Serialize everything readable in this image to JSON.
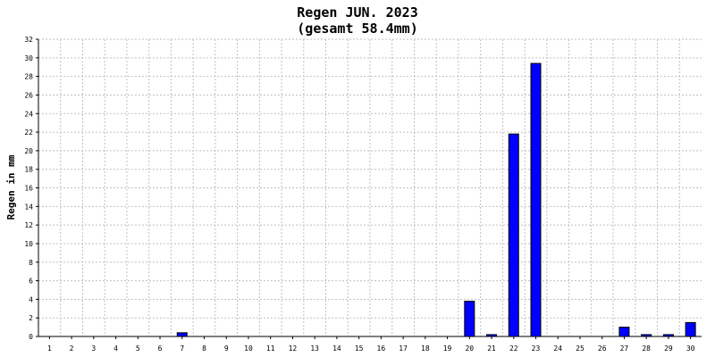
{
  "chart_data": {
    "type": "bar",
    "title": "Regen JUN. 2023",
    "subtitle": "(gesamt 58.4mm)",
    "ylabel": "Regen in mm",
    "xlabel": "",
    "categories": [
      "1",
      "2",
      "3",
      "4",
      "5",
      "6",
      "7",
      "8",
      "9",
      "10",
      "11",
      "12",
      "13",
      "14",
      "15",
      "16",
      "17",
      "18",
      "19",
      "20",
      "21",
      "22",
      "23",
      "24",
      "25",
      "26",
      "27",
      "28",
      "29",
      "30"
    ],
    "values": [
      0,
      0,
      0,
      0,
      0,
      0,
      0.4,
      0,
      0,
      0,
      0,
      0,
      0,
      0,
      0,
      0,
      0,
      0,
      0,
      3.8,
      0.2,
      21.8,
      29.4,
      0,
      0,
      0,
      1.0,
      0.2,
      0.2,
      1.5
    ],
    "ylim": [
      0,
      32
    ],
    "yticks": [
      0,
      2,
      4,
      6,
      8,
      10,
      12,
      14,
      16,
      18,
      20,
      22,
      24,
      26,
      28,
      30,
      32
    ],
    "grid": true,
    "legend": "none",
    "colors": {
      "bar_fill": "#0000ff",
      "bar_stroke": "#000000",
      "grid": "#c0c0c0",
      "axis": "#000000",
      "background": "#ffffff"
    }
  }
}
